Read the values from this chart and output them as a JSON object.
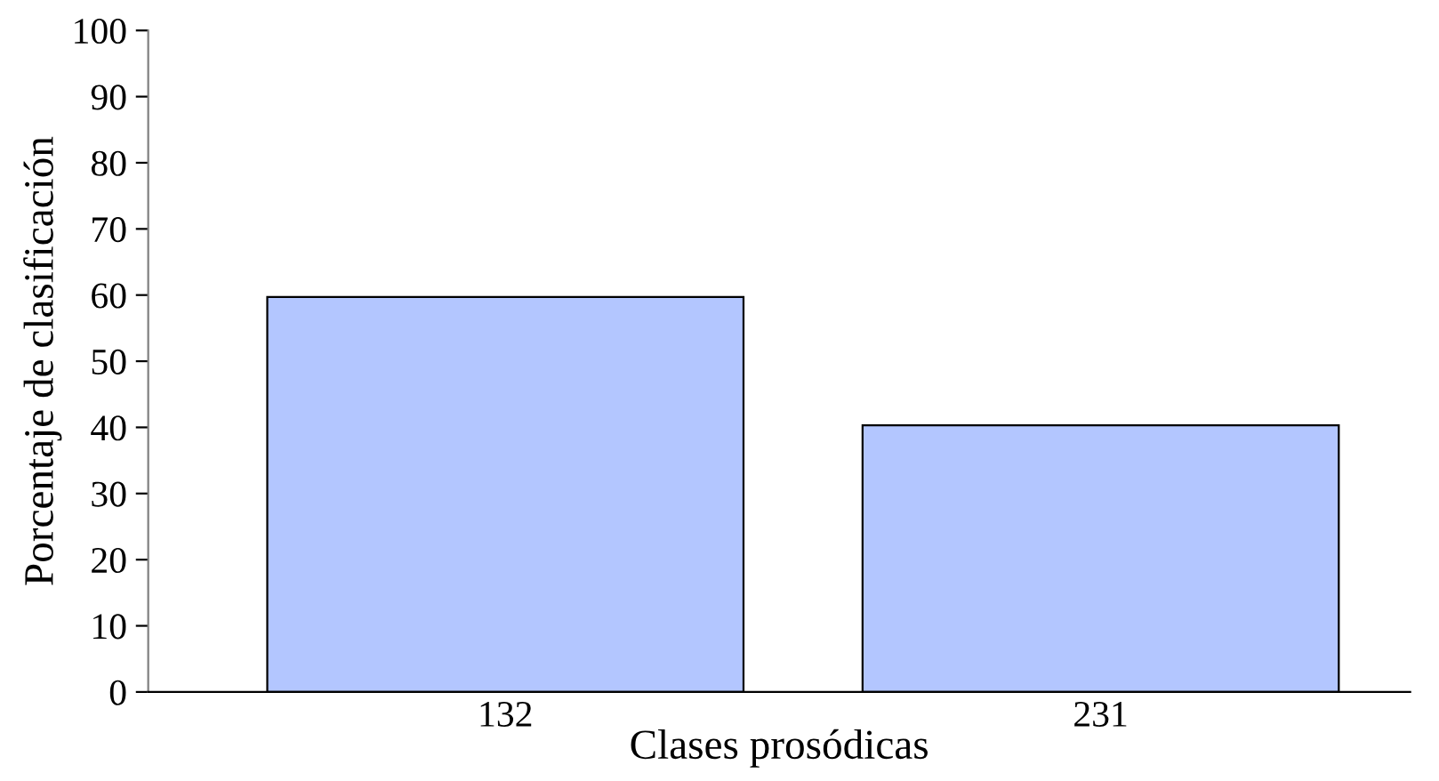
{
  "chart_data": {
    "type": "bar",
    "xlabel": "Clases prosódicas",
    "ylabel": "Porcentaje de clasificación",
    "categories": [
      "132",
      "231"
    ],
    "values": [
      59.7,
      40.3
    ],
    "color": "#b3c6ff",
    "ylim": [
      0,
      100
    ],
    "yticks": [
      0,
      10,
      20,
      30,
      40,
      50,
      60,
      70,
      80,
      90,
      100
    ],
    "grid": false
  }
}
